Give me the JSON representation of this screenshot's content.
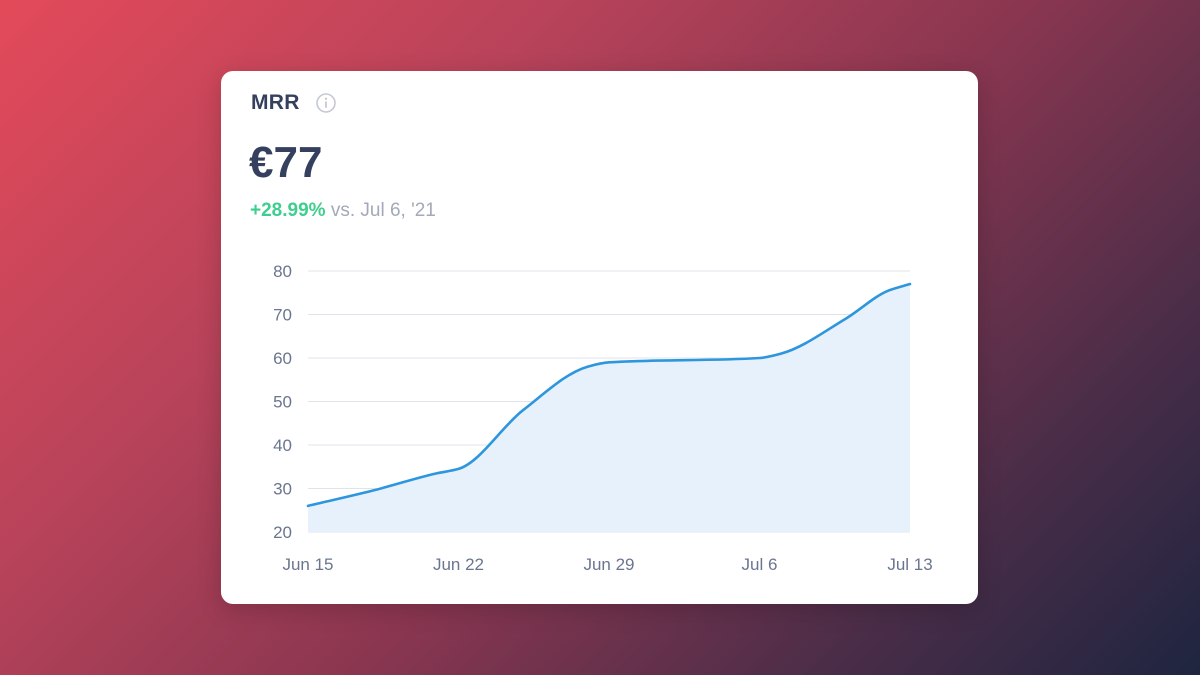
{
  "card": {
    "metric_name": "MRR",
    "info_icon": "info-icon",
    "value": "€77",
    "change": {
      "delta": "+28.99%",
      "comparison": "vs. Jul 6, '21"
    }
  },
  "colors": {
    "line": "#2d96dd",
    "area": "#e6f1fb",
    "grid": "#dfe3ea",
    "delta_positive": "#3ecf8e",
    "text_dark": "#34405e",
    "text_muted": "#a3a9b8"
  },
  "chart_data": {
    "type": "area",
    "title": "",
    "xlabel": "",
    "ylabel": "",
    "ylim": [
      20,
      80
    ],
    "yticks": [
      20,
      30,
      40,
      50,
      60,
      70,
      80
    ],
    "x_ticks": [
      "Jun 15",
      "Jun 22",
      "Jun 29",
      "Jul 6",
      "Jul 13"
    ],
    "grid": true,
    "legend": "none",
    "series": [
      {
        "x": [
          "Jun 15",
          "Jun 18",
          "Jun 21",
          "Jun 22",
          "Jun 25",
          "Jun 28",
          "Jun 29",
          "Jul 6",
          "Jul 7",
          "Jul 10",
          "Jul 12",
          "Jul 13"
        ],
        "x_index": [
          0,
          3,
          6,
          7,
          10,
          13,
          14,
          21,
          22,
          25,
          27,
          28
        ],
        "values": [
          26,
          29.5,
          33.5,
          34.5,
          48,
          58,
          59,
          60,
          61,
          69,
          75.5,
          77
        ]
      }
    ]
  }
}
